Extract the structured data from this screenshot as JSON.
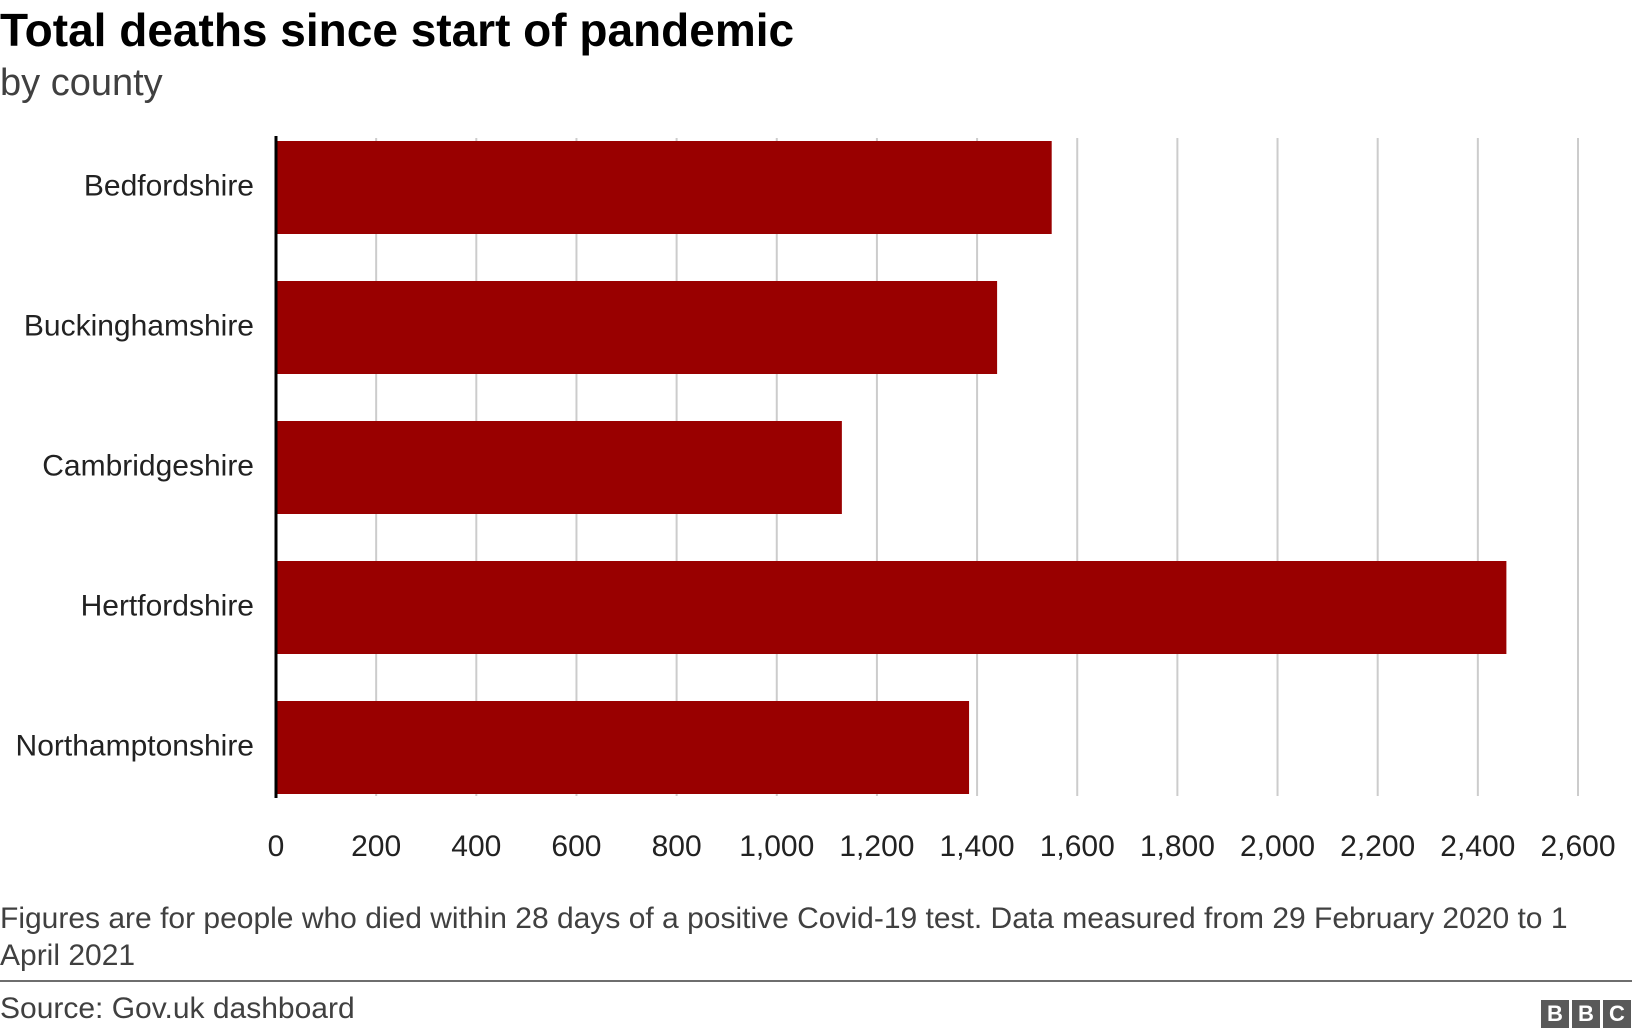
{
  "header": {
    "title": "Total deaths since start of pandemic",
    "subtitle": "by county"
  },
  "chart_data": {
    "type": "bar",
    "orientation": "horizontal",
    "title": "Total deaths since start of pandemic",
    "subtitle": "by county",
    "categories": [
      "Bedfordshire",
      "Buckinghamshire",
      "Cambridgeshire",
      "Hertfordshire",
      "Northamptonshire"
    ],
    "values": [
      1549,
      1440,
      1130,
      2457,
      1384
    ],
    "xlim": [
      0,
      2600
    ],
    "xticks": [
      0,
      200,
      400,
      600,
      800,
      1000,
      1200,
      1400,
      1600,
      1800,
      2000,
      2200,
      2400,
      2600
    ],
    "xtick_labels": [
      "0",
      "200",
      "400",
      "600",
      "800",
      "1,000",
      "1,200",
      "1,400",
      "1,600",
      "1,800",
      "2,000",
      "2,200",
      "2,400",
      "2,600"
    ],
    "xlabel": "",
    "ylabel": "",
    "grid": "vertical",
    "bar_color": "#990000",
    "grid_color": "#cccccc"
  },
  "footer": {
    "note": "Figures are for people who died within 28 days of a positive Covid-19 test. Data measured from 29 February 2020 to 1 April 2021",
    "source": "Source: Gov.uk dashboard",
    "logo": [
      "B",
      "B",
      "C"
    ]
  }
}
